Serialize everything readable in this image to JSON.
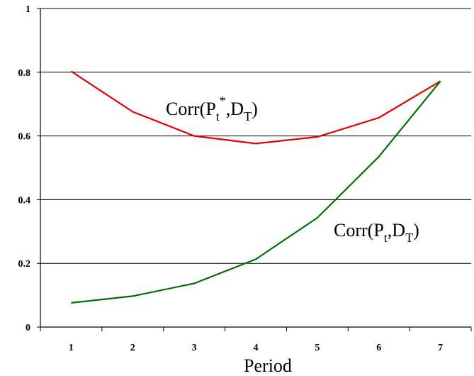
{
  "chart_data": {
    "type": "line",
    "xlabel": "Period",
    "ylabel": "",
    "ylim": [
      0,
      1
    ],
    "yticks": [
      "0",
      "0.2",
      "0.4",
      "0.6",
      "0.8",
      "1"
    ],
    "categories": [
      "1",
      "2",
      "3",
      "4",
      "5",
      "6",
      "7"
    ],
    "grid": "horizontal",
    "series": [
      {
        "name": "Corr(Pt*,DT)",
        "label_parts": {
          "main": "Corr(P",
          "sub1": "t",
          "sup": "*",
          "mid": ",D",
          "sub2": "T",
          "end": ")"
        },
        "color": "#e00000",
        "values": [
          0.803,
          0.676,
          0.6,
          0.576,
          0.597,
          0.657,
          0.772
        ]
      },
      {
        "name": "Corr(Pt,DT)",
        "label_parts": {
          "main": "Corr(P",
          "sub1": "t",
          "mid": ",D",
          "sub2": "T",
          "end": ")"
        },
        "color": "#007000",
        "values": [
          0.076,
          0.097,
          0.137,
          0.213,
          0.343,
          0.535,
          0.772
        ]
      }
    ]
  }
}
